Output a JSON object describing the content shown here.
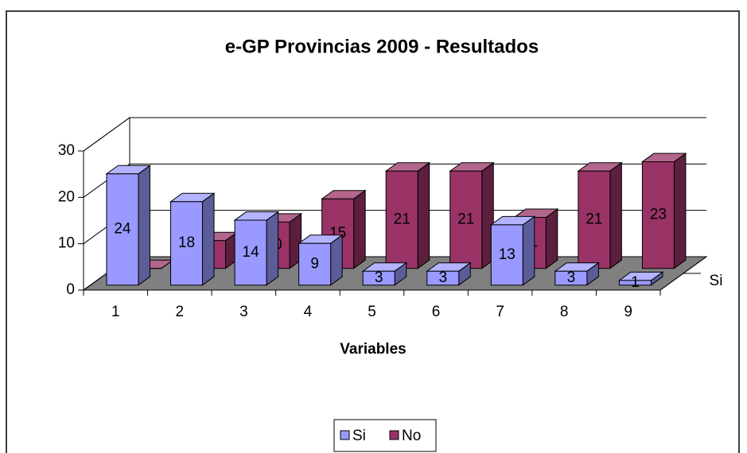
{
  "chart_data": {
    "type": "bar3d",
    "title": "e-GP Provincias 2009 - Resultados",
    "x_label": "Variables",
    "categories": [
      "1",
      "2",
      "3",
      "4",
      "5",
      "6",
      "7",
      "8",
      "9"
    ],
    "series": [
      {
        "name": "Si",
        "color": "#9999ff",
        "values": [
          24,
          18,
          14,
          9,
          3,
          3,
          13,
          3,
          1
        ]
      },
      {
        "name": "No",
        "color": "#993366",
        "values": [
          0,
          6,
          10,
          15,
          21,
          21,
          11,
          21,
          23
        ]
      }
    ],
    "ylim": [
      0,
      30
    ],
    "yticks": [
      0,
      10,
      20,
      30
    ],
    "grid": true,
    "legend": "bottom"
  }
}
